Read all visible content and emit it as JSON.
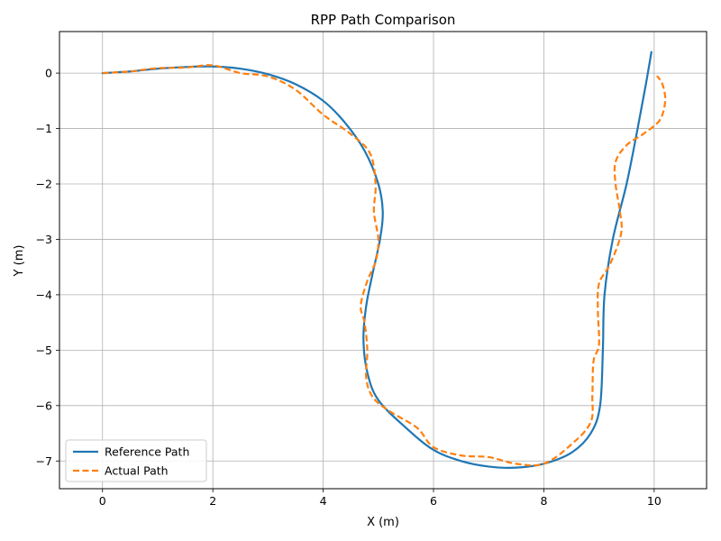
{
  "chart_data": {
    "type": "line",
    "title": "RPP Path Comparison",
    "xlabel": "X (m)",
    "ylabel": "Y (m)",
    "xlim": [
      -0.78,
      10.95
    ],
    "ylim": [
      -7.5,
      0.75
    ],
    "xticks": [
      0,
      2,
      4,
      6,
      8,
      10
    ],
    "yticks": [
      0,
      -1,
      -2,
      -3,
      -4,
      -5,
      -6,
      -7
    ],
    "xtick_labels": [
      "0",
      "2",
      "4",
      "6",
      "8",
      "10"
    ],
    "ytick_labels": [
      "0",
      "−1",
      "−2",
      "−3",
      "−4",
      "−5",
      "−6",
      "−7"
    ],
    "grid": true,
    "legend_position": "lower-left",
    "series": [
      {
        "name": "Reference Path",
        "color": "#1f77b4",
        "style": "solid",
        "points": [
          [
            0,
            0
          ],
          [
            0.5,
            0.03
          ],
          [
            1,
            0.08
          ],
          [
            1.5,
            0.11
          ],
          [
            2,
            0.12
          ],
          [
            2.5,
            0.08
          ],
          [
            3,
            -0.02
          ],
          [
            3.5,
            -0.2
          ],
          [
            4,
            -0.5
          ],
          [
            4.4,
            -0.9
          ],
          [
            4.75,
            -1.4
          ],
          [
            5,
            -2.0
          ],
          [
            5.08,
            -2.5
          ],
          [
            5.03,
            -3.0
          ],
          [
            4.9,
            -3.6
          ],
          [
            4.78,
            -4.2
          ],
          [
            4.73,
            -4.8
          ],
          [
            4.8,
            -5.4
          ],
          [
            5,
            -5.9
          ],
          [
            5.5,
            -6.4
          ],
          [
            6,
            -6.8
          ],
          [
            6.5,
            -7.0
          ],
          [
            7,
            -7.1
          ],
          [
            7.5,
            -7.12
          ],
          [
            8,
            -7.05
          ],
          [
            8.5,
            -6.85
          ],
          [
            8.85,
            -6.5
          ],
          [
            9.02,
            -6.0
          ],
          [
            9.07,
            -5.0
          ],
          [
            9.1,
            -4.0
          ],
          [
            9.25,
            -3.0
          ],
          [
            9.5,
            -2.0
          ],
          [
            9.7,
            -1.0
          ],
          [
            9.85,
            -0.2
          ],
          [
            9.95,
            0.38
          ]
        ]
      },
      {
        "name": "Actual Path",
        "color": "#ff7f0e",
        "style": "dashed",
        "points": [
          [
            0,
            0
          ],
          [
            0.5,
            0.03
          ],
          [
            1,
            0.09
          ],
          [
            1.5,
            0.1
          ],
          [
            2,
            0.14
          ],
          [
            2.5,
            0.0
          ],
          [
            3,
            -0.06
          ],
          [
            3.5,
            -0.3
          ],
          [
            4,
            -0.75
          ],
          [
            4.5,
            -1.1
          ],
          [
            4.85,
            -1.45
          ],
          [
            4.95,
            -2.0
          ],
          [
            4.92,
            -2.5
          ],
          [
            5,
            -3.0
          ],
          [
            4.95,
            -3.4
          ],
          [
            4.8,
            -3.75
          ],
          [
            4.68,
            -4.2
          ],
          [
            4.75,
            -4.5
          ],
          [
            4.8,
            -5.0
          ],
          [
            4.78,
            -5.5
          ],
          [
            4.9,
            -5.85
          ],
          [
            5.2,
            -6.1
          ],
          [
            5.7,
            -6.4
          ],
          [
            6,
            -6.75
          ],
          [
            6.5,
            -6.9
          ],
          [
            7,
            -6.93
          ],
          [
            7.5,
            -7.05
          ],
          [
            8,
            -7.05
          ],
          [
            8.5,
            -6.7
          ],
          [
            8.85,
            -6.3
          ],
          [
            8.88,
            -5.8
          ],
          [
            8.9,
            -5.2
          ],
          [
            9,
            -4.9
          ],
          [
            8.98,
            -4.3
          ],
          [
            9,
            -3.8
          ],
          [
            9.2,
            -3.45
          ],
          [
            9.4,
            -2.9
          ],
          [
            9.38,
            -2.5
          ],
          [
            9.3,
            -2.0
          ],
          [
            9.3,
            -1.6
          ],
          [
            9.5,
            -1.3
          ],
          [
            9.8,
            -1.1
          ],
          [
            10.1,
            -0.85
          ],
          [
            10.2,
            -0.5
          ],
          [
            10.15,
            -0.2
          ],
          [
            10.05,
            -0.05
          ]
        ]
      }
    ]
  }
}
